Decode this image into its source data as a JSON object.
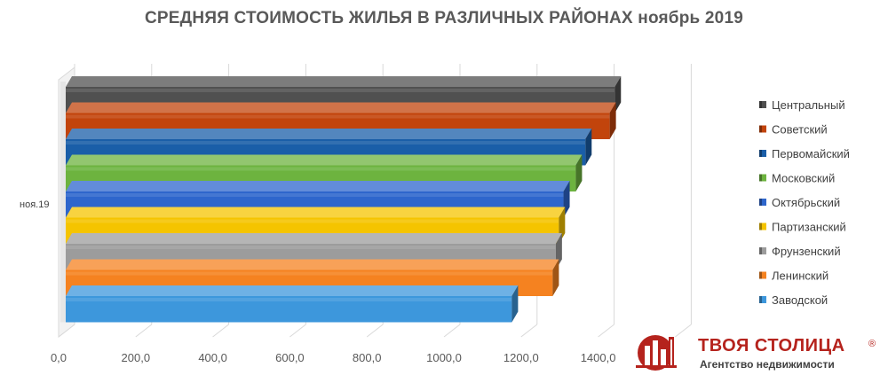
{
  "chart_data": {
    "type": "bar",
    "orientation": "horizontal",
    "style": "3d",
    "title": "СРЕДНЯЯ СТОИМОСТЬ ЖИЛЬЯ В РАЗЛИЧНЫХ РАЙОНАХ ноябрь 2019",
    "categories": [
      "ноя.19"
    ],
    "series": [
      {
        "name": "Центральный",
        "values": [
          1443
        ],
        "color": "#505050"
      },
      {
        "name": "Советский",
        "values": [
          1430
        ],
        "color": "#c2440c"
      },
      {
        "name": "Первомайский",
        "values": [
          1367
        ],
        "color": "#1a5ea8"
      },
      {
        "name": "Московский",
        "values": [
          1342
        ],
        "color": "#6db33f"
      },
      {
        "name": "Октябрьский",
        "values": [
          1310
        ],
        "color": "#2e66cc"
      },
      {
        "name": "Партизанский",
        "values": [
          1298
        ],
        "color": "#f5c400"
      },
      {
        "name": "Фрунзенский",
        "values": [
          1290
        ],
        "color": "#9c9c9c"
      },
      {
        "name": "Ленинский",
        "values": [
          1282
        ],
        "color": "#f58220"
      },
      {
        "name": "Заводской",
        "values": [
          1176
        ],
        "color": "#3d97dc"
      }
    ],
    "xlim": [
      0,
      1600
    ],
    "x_ticks": [
      "0,0",
      "200,0",
      "400,0",
      "600,0",
      "800,0",
      "1000,0",
      "1200,0",
      "1400,0"
    ],
    "grid": true,
    "legend_position": "right"
  },
  "brand": {
    "name": "ТВОЯ СТОЛИЦА",
    "registered_mark": "®",
    "tagline": "Агентство недвижимости",
    "color": "#b5231d"
  }
}
